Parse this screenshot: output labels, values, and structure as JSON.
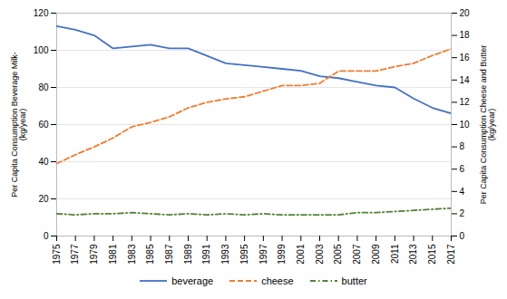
{
  "chart_data": {
    "type": "line",
    "x": [
      1975,
      1977,
      1979,
      1981,
      1983,
      1985,
      1987,
      1989,
      1991,
      1993,
      1995,
      1997,
      1999,
      2001,
      2003,
      2005,
      2007,
      2009,
      2011,
      2013,
      2015,
      2017
    ],
    "xlim": [
      1975,
      2017
    ],
    "xticks": [
      1975,
      1977,
      1979,
      1981,
      1983,
      1985,
      1987,
      1989,
      1991,
      1993,
      1995,
      1997,
      1999,
      2001,
      2003,
      2005,
      2007,
      2009,
      2011,
      2013,
      2015,
      2017
    ],
    "ylabel": "Per Capita Consumption Beverage Milk-\n(kg/year)",
    "y2label": "Per Capita Consumption Cheese and Butter\n(kg/year)",
    "ylim": [
      0,
      120
    ],
    "yticks": [
      0,
      20,
      40,
      60,
      80,
      100,
      120
    ],
    "y2lim": [
      0,
      20
    ],
    "y2ticks": [
      0,
      2,
      4,
      6,
      8,
      10,
      12,
      14,
      16,
      18,
      20
    ],
    "grid": true,
    "legend": "bottom",
    "series": [
      {
        "name": "beverage",
        "color": "#4472C4",
        "line_style": "solid",
        "values": [
          113,
          111,
          108,
          101,
          102,
          103,
          101,
          101,
          97,
          93,
          92,
          91,
          90,
          89,
          86,
          85,
          83,
          81,
          80,
          74,
          69,
          66
        ]
      },
      {
        "name": "cheese",
        "color": "#ED7D31",
        "line_style": "dashed",
        "axis": "y2",
        "values": [
          6.5,
          7.3,
          8.0,
          8.8,
          9.8,
          10.2,
          10.7,
          11.5,
          12.0,
          12.3,
          12.5,
          13.0,
          13.5,
          13.5,
          13.7,
          14.8,
          14.8,
          14.8,
          15.2,
          15.5,
          16.2,
          16.8
        ]
      },
      {
        "name": "butter",
        "color": "#548235",
        "line_style": "dashdot",
        "axis": "y2",
        "values": [
          2.0,
          1.9,
          2.0,
          2.0,
          2.1,
          2.0,
          1.9,
          2.0,
          1.9,
          2.0,
          1.9,
          2.0,
          1.9,
          1.9,
          1.9,
          1.9,
          2.1,
          2.1,
          2.2,
          2.3,
          2.4,
          2.5
        ]
      }
    ]
  }
}
